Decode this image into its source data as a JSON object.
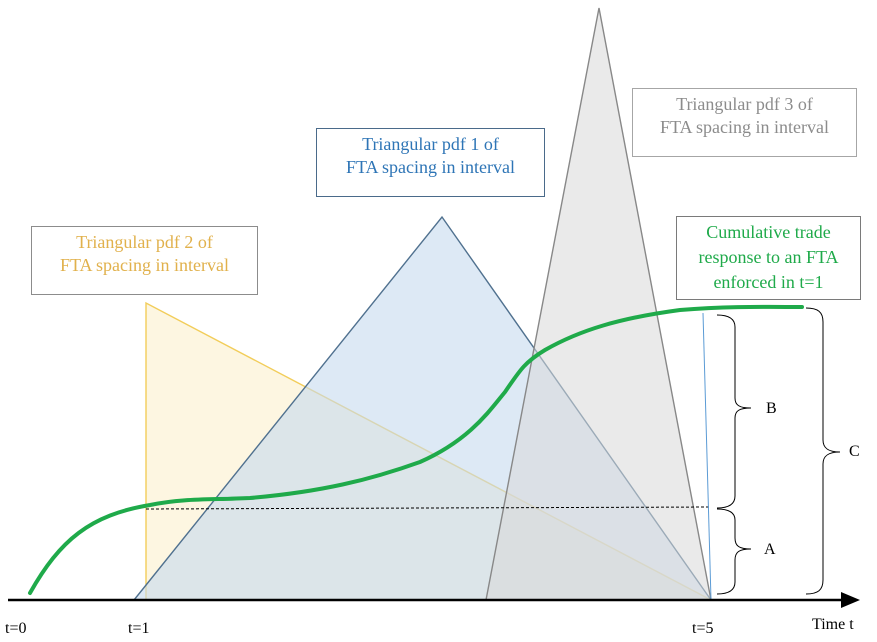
{
  "boxes": {
    "pdf1": [
      "Triangular pdf 1 of",
      "FTA spacing in interval"
    ],
    "pdf2": [
      "Triangular pdf 2 of",
      "FTA spacing in interval"
    ],
    "pdf3": [
      "Triangular pdf 3 of",
      "FTA spacing in interval"
    ],
    "cumulative": [
      "Cumulative trade",
      "response to an FTA",
      "enforced in t=1"
    ]
  },
  "braces": {
    "a": "A",
    "b": "B",
    "c": "C"
  },
  "axis": {
    "t0": "t=0",
    "t1": "t=1",
    "t5": "t=5",
    "time": "Time t"
  },
  "colors": {
    "pdf1_text": "#2e75b6",
    "pdf2_text": "#e1b14c",
    "pdf3_text": "#8c8c8c",
    "cumulative": "#1faa4a",
    "pdf1_fill": "#dbe7f3",
    "pdf2_fill": "#fcefc8",
    "pdf3_fill": "#e6e6e6"
  }
}
